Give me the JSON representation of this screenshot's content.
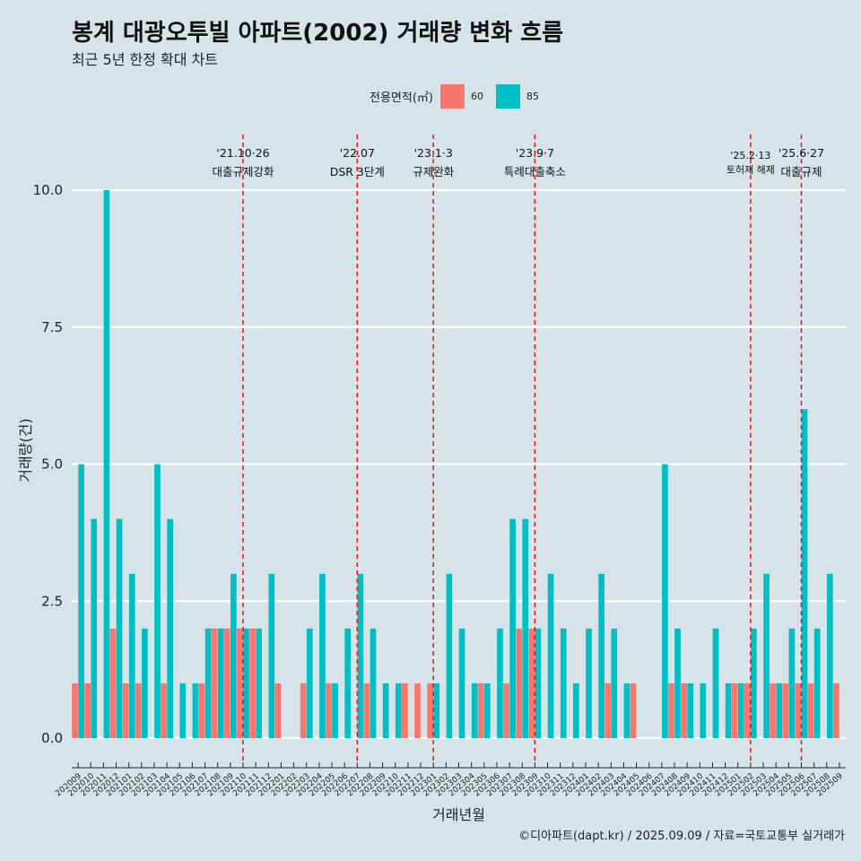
{
  "title": "봉계 대광오투빌 아파트(2002) 거래량 변화 흐름",
  "subtitle": "최근 5년 한정 확대 차트",
  "caption": "©디아파트(dapt.kr) / 2025.09.09 / 자료=국토교통부 실거래가",
  "legend": {
    "title": "전용면적(㎡)",
    "items": [
      {
        "label": "60",
        "color": "#f8766d"
      },
      {
        "label": "85",
        "color": "#00bfc4"
      }
    ]
  },
  "chart_data": {
    "type": "bar",
    "xlabel": "거래년월",
    "ylabel": "거래량(건)",
    "ylim": [
      0,
      10
    ],
    "yticks": [
      "0.0",
      "2.5",
      "5.0",
      "7.5",
      "10.0"
    ],
    "ytick_values": [
      0,
      2.5,
      5,
      7.5,
      10
    ],
    "grid": true,
    "legend_position": "top",
    "categories": [
      "202009",
      "202010",
      "202011",
      "202012",
      "202101",
      "202102",
      "202103",
      "202104",
      "202105",
      "202106",
      "202107",
      "202108",
      "202109",
      "202110",
      "202111",
      "202112",
      "202201",
      "202202",
      "202203",
      "202204",
      "202205",
      "202206",
      "202207",
      "202208",
      "202209",
      "202210",
      "202211",
      "202212",
      "202301",
      "202302",
      "202303",
      "202304",
      "202305",
      "202306",
      "202307",
      "202308",
      "202309",
      "202310",
      "202311",
      "202312",
      "202401",
      "202402",
      "202403",
      "202404",
      "202405",
      "202406",
      "202407",
      "202408",
      "202409",
      "202410",
      "202411",
      "202412",
      "202501",
      "202502",
      "202503",
      "202504",
      "202505",
      "202506",
      "202507",
      "202508",
      "202509"
    ],
    "series": [
      {
        "name": "60",
        "color": "#f8766d",
        "values": [
          1,
          1,
          0,
          2,
          1,
          1,
          0,
          1,
          0,
          0,
          1,
          2,
          2,
          2,
          2,
          0,
          1,
          0,
          1,
          0,
          1,
          0,
          0,
          1,
          0,
          0,
          1,
          1,
          1,
          0,
          0,
          0,
          1,
          0,
          1,
          2,
          2,
          0,
          0,
          0,
          0,
          0,
          1,
          0,
          1,
          0,
          0,
          1,
          1,
          0,
          0,
          0,
          1,
          1,
          0,
          1,
          1,
          1,
          1,
          0,
          1
        ]
      },
      {
        "name": "85",
        "color": "#00bfc4",
        "values": [
          5,
          4,
          10,
          4,
          3,
          2,
          5,
          4,
          1,
          1,
          2,
          2,
          3,
          2,
          2,
          3,
          0,
          0,
          2,
          3,
          1,
          2,
          3,
          2,
          1,
          1,
          0,
          0,
          1,
          3,
          2,
          1,
          1,
          2,
          4,
          4,
          2,
          3,
          2,
          1,
          2,
          3,
          2,
          1,
          0,
          0,
          5,
          2,
          1,
          1,
          2,
          1,
          1,
          2,
          3,
          1,
          2,
          6,
          2,
          3,
          0
        ]
      }
    ],
    "annotations": [
      {
        "label": "'21.10·26",
        "text": "대출규제강화",
        "x": "202110"
      },
      {
        "label": "'22.07",
        "text": "DSR 3단계",
        "x": "202207"
      },
      {
        "label": "'23.1·3",
        "text": "규제완화",
        "x": "202301"
      },
      {
        "label": "'23.9·7",
        "text": "특례대출축소",
        "x": "202309"
      },
      {
        "label": "'25.2·13",
        "text": "토허제 해제",
        "x": "202502"
      },
      {
        "label": "'25.6·27",
        "text": "대출규제",
        "x": "202506"
      }
    ]
  }
}
